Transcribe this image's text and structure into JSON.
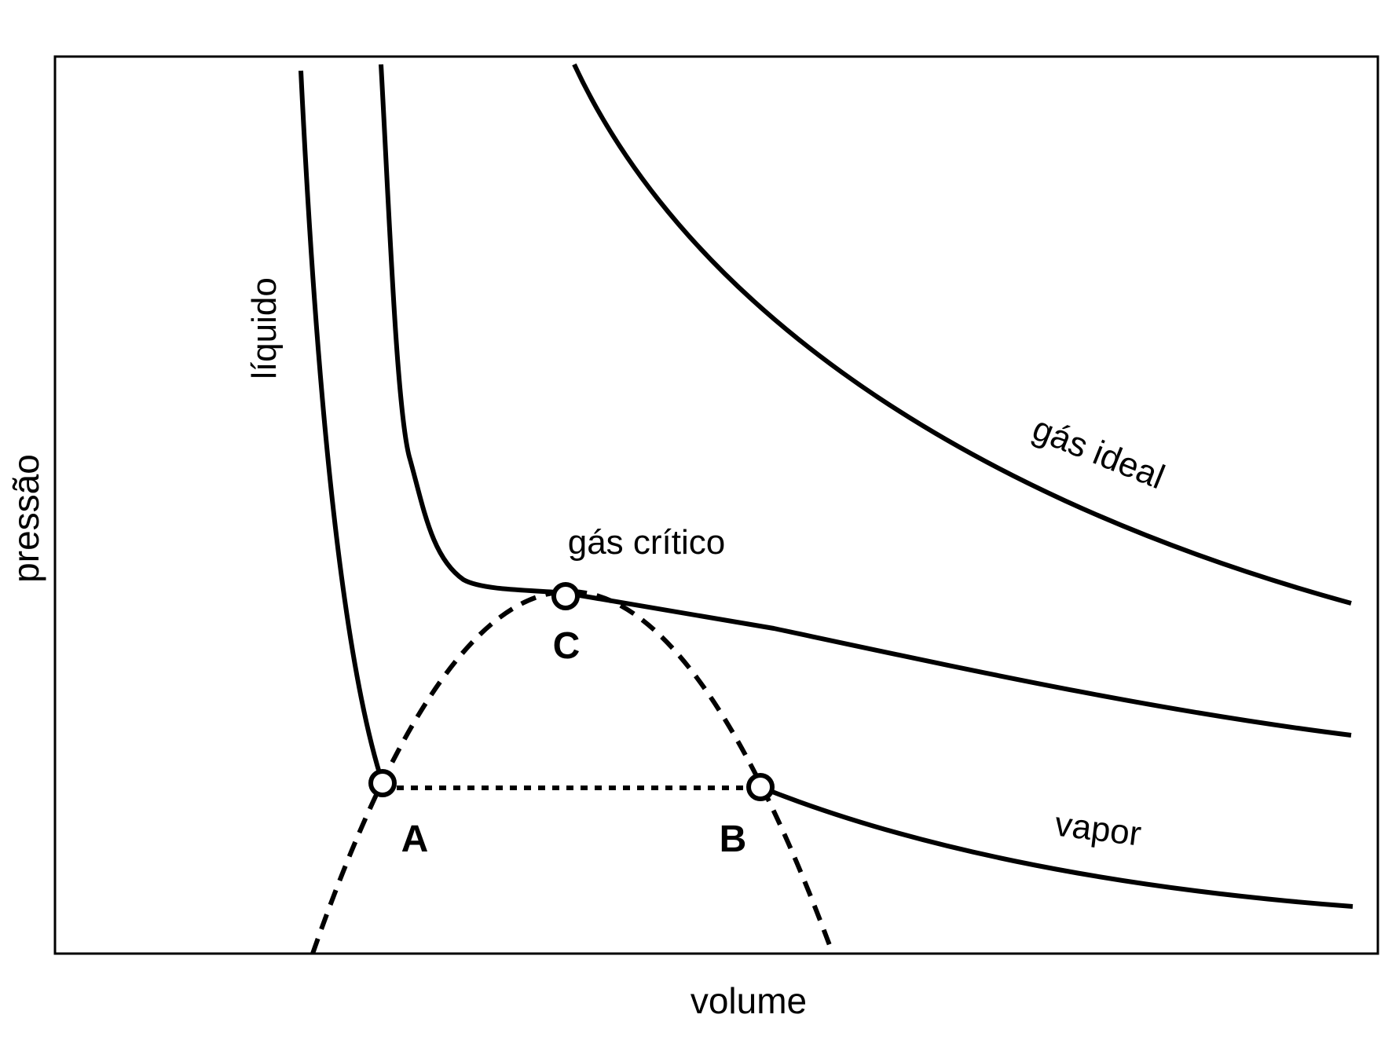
{
  "axes": {
    "x_label": "volume",
    "y_label": "pressão"
  },
  "curves": {
    "liquid_label": "líquido",
    "critical_label": "gás crítico",
    "ideal_label": "gás ideal",
    "vapor_label": "vapor"
  },
  "points": {
    "a_label": "A",
    "b_label": "B",
    "c_label": "C"
  },
  "colors": {
    "ink": "#000000",
    "background": "#ffffff"
  }
}
